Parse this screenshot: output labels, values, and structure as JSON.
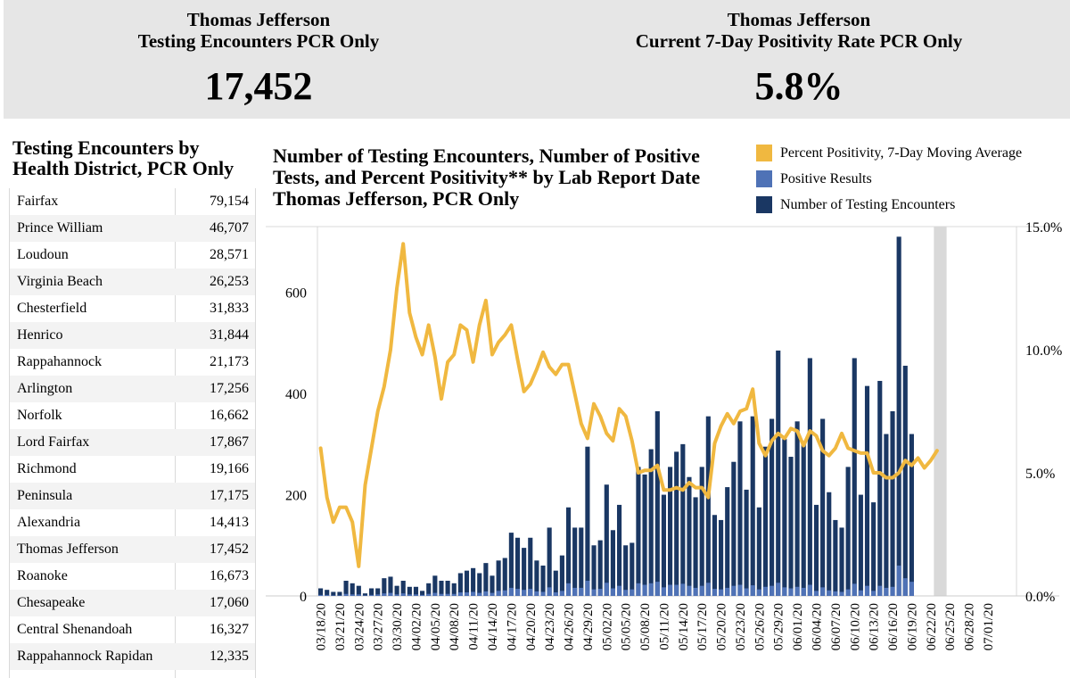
{
  "kpis": {
    "left": {
      "title_line1": "Thomas Jefferson",
      "title_line2": "Testing Encounters PCR Only",
      "value": "17,452"
    },
    "right": {
      "title_line1": "Thomas Jefferson",
      "title_line2": "Current 7-Day Positivity Rate PCR Only",
      "value": "5.8%"
    }
  },
  "districts": {
    "title_line1": "Testing Encounters by",
    "title_line2": "Health District, PCR Only",
    "rows": [
      {
        "name": "Fairfax",
        "count": "79,154"
      },
      {
        "name": "Prince William",
        "count": "46,707"
      },
      {
        "name": "Loudoun",
        "count": "28,571"
      },
      {
        "name": "Virginia Beach",
        "count": "26,253"
      },
      {
        "name": "Chesterfield",
        "count": "31,833"
      },
      {
        "name": "Henrico",
        "count": "31,844"
      },
      {
        "name": "Rappahannock",
        "count": "21,173"
      },
      {
        "name": "Arlington",
        "count": "17,256"
      },
      {
        "name": "Norfolk",
        "count": "16,662"
      },
      {
        "name": "Lord Fairfax",
        "count": "17,867"
      },
      {
        "name": "Richmond",
        "count": "19,166"
      },
      {
        "name": "Peninsula",
        "count": "17,175"
      },
      {
        "name": "Alexandria",
        "count": "14,413"
      },
      {
        "name": "Thomas Jefferson",
        "count": "17,452"
      },
      {
        "name": "Roanoke",
        "count": "16,673"
      },
      {
        "name": "Chesapeake",
        "count": "17,060"
      },
      {
        "name": "Central Shenandoah",
        "count": "16,327"
      },
      {
        "name": "Rappahannock Rapidan",
        "count": "12,335"
      }
    ]
  },
  "chart_data": {
    "type": "bar",
    "title": [
      "Number of Testing Encounters, Number of Positive",
      "Tests, and Percent Positivity** by Lab Report Date",
      "Thomas Jefferson, PCR Only"
    ],
    "legend": [
      {
        "name": "Percent Positivity, 7-Day Moving Average",
        "color": "#f0b840"
      },
      {
        "name": "Positive Results",
        "color": "#4f72b6"
      },
      {
        "name": "Number of Testing Encounters",
        "color": "#1a3763"
      }
    ],
    "colors": {
      "encounters": "#1a3763",
      "positives": "#4f72b6",
      "positivity": "#f0b840",
      "highlight": "#d9d9d9"
    },
    "start_date": "03/18/20",
    "x_tick_labels": [
      "03/18/20",
      "03/21/20",
      "03/24/20",
      "03/27/20",
      "03/30/20",
      "04/02/20",
      "04/05/20",
      "04/08/20",
      "04/11/20",
      "04/14/20",
      "04/17/20",
      "04/20/20",
      "04/23/20",
      "04/26/20",
      "04/29/20",
      "05/02/20",
      "05/05/20",
      "05/08/20",
      "05/11/20",
      "05/14/20",
      "05/17/20",
      "05/20/20",
      "05/23/20",
      "05/26/20",
      "05/29/20",
      "06/01/20",
      "06/04/20",
      "06/07/20",
      "06/10/20",
      "06/13/20",
      "06/16/20",
      "06/19/20",
      "06/22/20",
      "06/25/20",
      "06/28/20",
      "07/01/20"
    ],
    "y_left": {
      "ylim": [
        0,
        730
      ],
      "ticks": [
        0,
        200,
        400,
        600
      ]
    },
    "y_right": {
      "ylim": [
        0,
        15
      ],
      "ticks": [
        0,
        5,
        10,
        15
      ],
      "tick_labels": [
        "0.0%",
        "5.0%",
        "10.0%",
        "15.0%"
      ]
    },
    "highlight_days": [
      97,
      98
    ],
    "encounters": [
      15,
      12,
      8,
      8,
      30,
      25,
      20,
      5,
      15,
      15,
      35,
      38,
      20,
      30,
      18,
      18,
      10,
      25,
      40,
      30,
      30,
      25,
      45,
      50,
      55,
      45,
      65,
      40,
      70,
      75,
      125,
      115,
      95,
      115,
      70,
      60,
      135,
      50,
      80,
      175,
      135,
      135,
      295,
      100,
      110,
      220,
      130,
      180,
      100,
      105,
      255,
      240,
      290,
      365,
      200,
      255,
      285,
      300,
      235,
      195,
      255,
      355,
      160,
      150,
      215,
      265,
      345,
      210,
      355,
      175,
      295,
      350,
      485,
      310,
      275,
      345,
      305,
      470,
      180,
      350,
      205,
      150,
      135,
      255,
      470,
      200,
      415,
      185,
      425,
      320,
      365,
      710,
      455,
      320,
      0,
      0,
      0,
      0,
      0,
      0,
      0,
      0,
      0,
      0,
      0,
      0,
      0,
      0,
      0,
      0
    ],
    "positives": [
      2,
      2,
      1,
      1,
      4,
      3,
      3,
      1,
      2,
      3,
      5,
      6,
      3,
      5,
      3,
      3,
      2,
      4,
      6,
      4,
      4,
      4,
      7,
      7,
      8,
      6,
      9,
      6,
      10,
      11,
      16,
      14,
      12,
      14,
      9,
      8,
      17,
      7,
      10,
      25,
      16,
      16,
      30,
      13,
      14,
      26,
      15,
      20,
      12,
      13,
      25,
      22,
      25,
      28,
      17,
      22,
      22,
      24,
      20,
      16,
      20,
      26,
      14,
      13,
      16,
      20,
      22,
      15,
      21,
      13,
      18,
      20,
      26,
      17,
      15,
      18,
      16,
      22,
      10,
      17,
      11,
      9,
      8,
      13,
      24,
      11,
      20,
      10,
      20,
      16,
      18,
      60,
      35,
      28,
      0,
      0,
      0,
      0,
      0,
      0,
      0,
      0,
      0,
      0,
      0,
      0,
      0,
      0,
      0,
      0
    ],
    "positivity_pct": [
      6.0,
      4.0,
      3.0,
      3.6,
      3.6,
      3.0,
      1.2,
      4.5,
      6.0,
      7.5,
      8.5,
      10.0,
      12.5,
      14.3,
      11.5,
      10.5,
      9.8,
      11.0,
      9.7,
      8.0,
      9.5,
      9.8,
      11.0,
      10.8,
      9.5,
      11.0,
      12.0,
      9.8,
      10.3,
      10.6,
      11.0,
      9.6,
      8.3,
      8.6,
      9.2,
      9.9,
      9.3,
      9.0,
      9.4,
      9.4,
      8.2,
      7.0,
      6.4,
      7.8,
      7.3,
      6.6,
      6.3,
      7.6,
      7.3,
      6.3,
      5.0,
      5.1,
      5.1,
      5.3,
      4.3,
      4.3,
      4.4,
      4.3,
      4.6,
      4.4,
      4.4,
      4.0,
      6.2,
      6.9,
      7.4,
      7.0,
      7.5,
      7.6,
      8.4,
      6.2,
      5.7,
      6.3,
      6.6,
      6.4,
      6.8,
      6.7,
      6.1,
      6.7,
      6.5,
      5.9,
      5.7,
      6.0,
      6.6,
      6.0,
      5.9,
      5.8,
      5.8,
      5.0,
      5.0,
      4.8,
      4.8,
      5.0,
      5.5,
      5.3,
      5.6,
      5.2,
      5.5,
      5.9
    ]
  }
}
